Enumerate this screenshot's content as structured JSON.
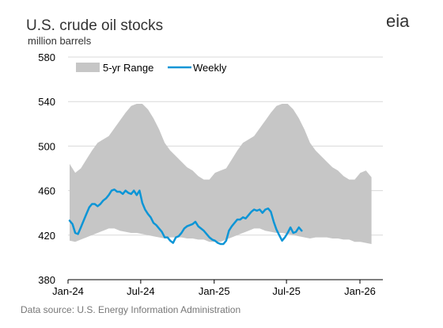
{
  "chart_data": {
    "type": "area",
    "title": "U.S. crude oil stocks",
    "subtitle": "million barrels",
    "source": "Data source: U.S. Energy Information Administration",
    "logo": "eia",
    "ylim": [
      380,
      580
    ],
    "yticks": [
      380,
      420,
      460,
      500,
      540,
      580
    ],
    "xticks": [
      "Jan-24",
      "Jul-24",
      "Jan-25",
      "Jul-25",
      "Jan-26"
    ],
    "grid": true,
    "legend_position": "top-left",
    "colors": {
      "range": "#c6c6c6",
      "weekly": "#0c95d6",
      "grid": "#d9d9d9"
    },
    "series": [
      {
        "name": "5-yr Range",
        "type": "range",
        "x": [
          "2024-01-05",
          "2024-01-19",
          "2024-02-02",
          "2024-02-16",
          "2024-03-01",
          "2024-03-15",
          "2024-03-29",
          "2024-04-12",
          "2024-04-26",
          "2024-05-10",
          "2024-05-24",
          "2024-06-07",
          "2024-06-21",
          "2024-07-05",
          "2024-07-19",
          "2024-08-02",
          "2024-08-16",
          "2024-08-30",
          "2024-09-13",
          "2024-09-27",
          "2024-10-11",
          "2024-10-25",
          "2024-11-08",
          "2024-11-22",
          "2024-12-06",
          "2024-12-20",
          "2025-01-03",
          "2025-01-17",
          "2025-01-31",
          "2025-02-14",
          "2025-02-28",
          "2025-03-14",
          "2025-03-28",
          "2025-04-11",
          "2025-04-25",
          "2025-05-09",
          "2025-05-23",
          "2025-06-06",
          "2025-06-20",
          "2025-07-04",
          "2025-07-18",
          "2025-08-01",
          "2025-08-15",
          "2025-08-29",
          "2025-09-12",
          "2025-09-26",
          "2025-10-10",
          "2025-10-24",
          "2025-11-07",
          "2025-11-21",
          "2025-12-05",
          "2025-12-19",
          "2026-01-02",
          "2026-01-16",
          "2026-01-30"
        ],
        "low": [
          415,
          414,
          416,
          418,
          420,
          422,
          424,
          426,
          426,
          424,
          423,
          422,
          422,
          421,
          420,
          419,
          418,
          417,
          418,
          418,
          418,
          417,
          417,
          416,
          416,
          414,
          414,
          414,
          416,
          418,
          420,
          422,
          424,
          426,
          426,
          424,
          423,
          422,
          422,
          421,
          420,
          419,
          418,
          417,
          418,
          418,
          418,
          417,
          417,
          416,
          416,
          414,
          414,
          413,
          412
        ],
        "high": [
          484,
          476,
          480,
          488,
          496,
          503,
          506,
          509,
          516,
          523,
          530,
          536,
          538,
          538,
          533,
          525,
          515,
          503,
          496,
          491,
          486,
          481,
          478,
          473,
          470,
          470,
          476,
          478,
          480,
          488,
          496,
          503,
          506,
          509,
          516,
          523,
          530,
          536,
          538,
          538,
          533,
          525,
          515,
          503,
          496,
          491,
          486,
          481,
          478,
          473,
          470,
          470,
          476,
          478,
          472
        ]
      },
      {
        "name": "Weekly",
        "type": "line",
        "x": [
          "2024-01-05",
          "2024-01-12",
          "2024-01-19",
          "2024-01-26",
          "2024-02-02",
          "2024-02-09",
          "2024-02-16",
          "2024-02-23",
          "2024-03-01",
          "2024-03-08",
          "2024-03-15",
          "2024-03-22",
          "2024-03-29",
          "2024-04-05",
          "2024-04-12",
          "2024-04-19",
          "2024-04-26",
          "2024-05-03",
          "2024-05-10",
          "2024-05-17",
          "2024-05-24",
          "2024-05-31",
          "2024-06-07",
          "2024-06-14",
          "2024-06-21",
          "2024-06-28",
          "2024-07-05",
          "2024-07-12",
          "2024-07-19",
          "2024-07-26",
          "2024-08-02",
          "2024-08-09",
          "2024-08-16",
          "2024-08-23",
          "2024-08-30",
          "2024-09-06",
          "2024-09-13",
          "2024-09-20",
          "2024-09-27",
          "2024-10-04",
          "2024-10-11",
          "2024-10-18",
          "2024-10-25",
          "2024-11-01",
          "2024-11-08",
          "2024-11-15",
          "2024-11-22",
          "2024-11-29",
          "2024-12-06",
          "2024-12-13",
          "2024-12-20",
          "2024-12-27",
          "2025-01-03",
          "2025-01-10",
          "2025-01-17",
          "2025-01-24",
          "2025-01-31",
          "2025-02-07",
          "2025-02-14",
          "2025-02-21",
          "2025-02-28",
          "2025-03-07",
          "2025-03-14",
          "2025-03-21",
          "2025-03-28",
          "2025-04-04",
          "2025-04-11",
          "2025-04-18",
          "2025-04-25",
          "2025-05-02",
          "2025-05-09",
          "2025-05-16",
          "2025-05-23",
          "2025-05-30",
          "2025-06-06",
          "2025-06-13",
          "2025-06-20",
          "2025-06-27",
          "2025-07-04",
          "2025-07-11",
          "2025-07-18",
          "2025-07-25",
          "2025-08-01",
          "2025-08-08"
        ],
        "values": [
          433,
          430,
          422,
          421,
          427,
          433,
          439,
          445,
          448,
          448,
          446,
          448,
          451,
          453,
          456,
          460,
          461,
          459,
          459,
          457,
          460,
          458,
          457,
          460,
          456,
          460,
          449,
          443,
          439,
          436,
          431,
          429,
          426,
          423,
          418,
          418,
          415,
          413,
          418,
          419,
          422,
          426,
          428,
          429,
          430,
          432,
          428,
          426,
          424,
          421,
          418,
          416,
          415,
          413,
          412,
          412,
          415,
          424,
          428,
          431,
          434,
          434,
          436,
          435,
          438,
          441,
          443,
          442,
          443,
          440,
          443,
          444,
          441,
          432,
          425,
          420,
          415,
          418,
          422,
          427,
          422,
          423,
          427,
          424
        ]
      }
    ]
  }
}
